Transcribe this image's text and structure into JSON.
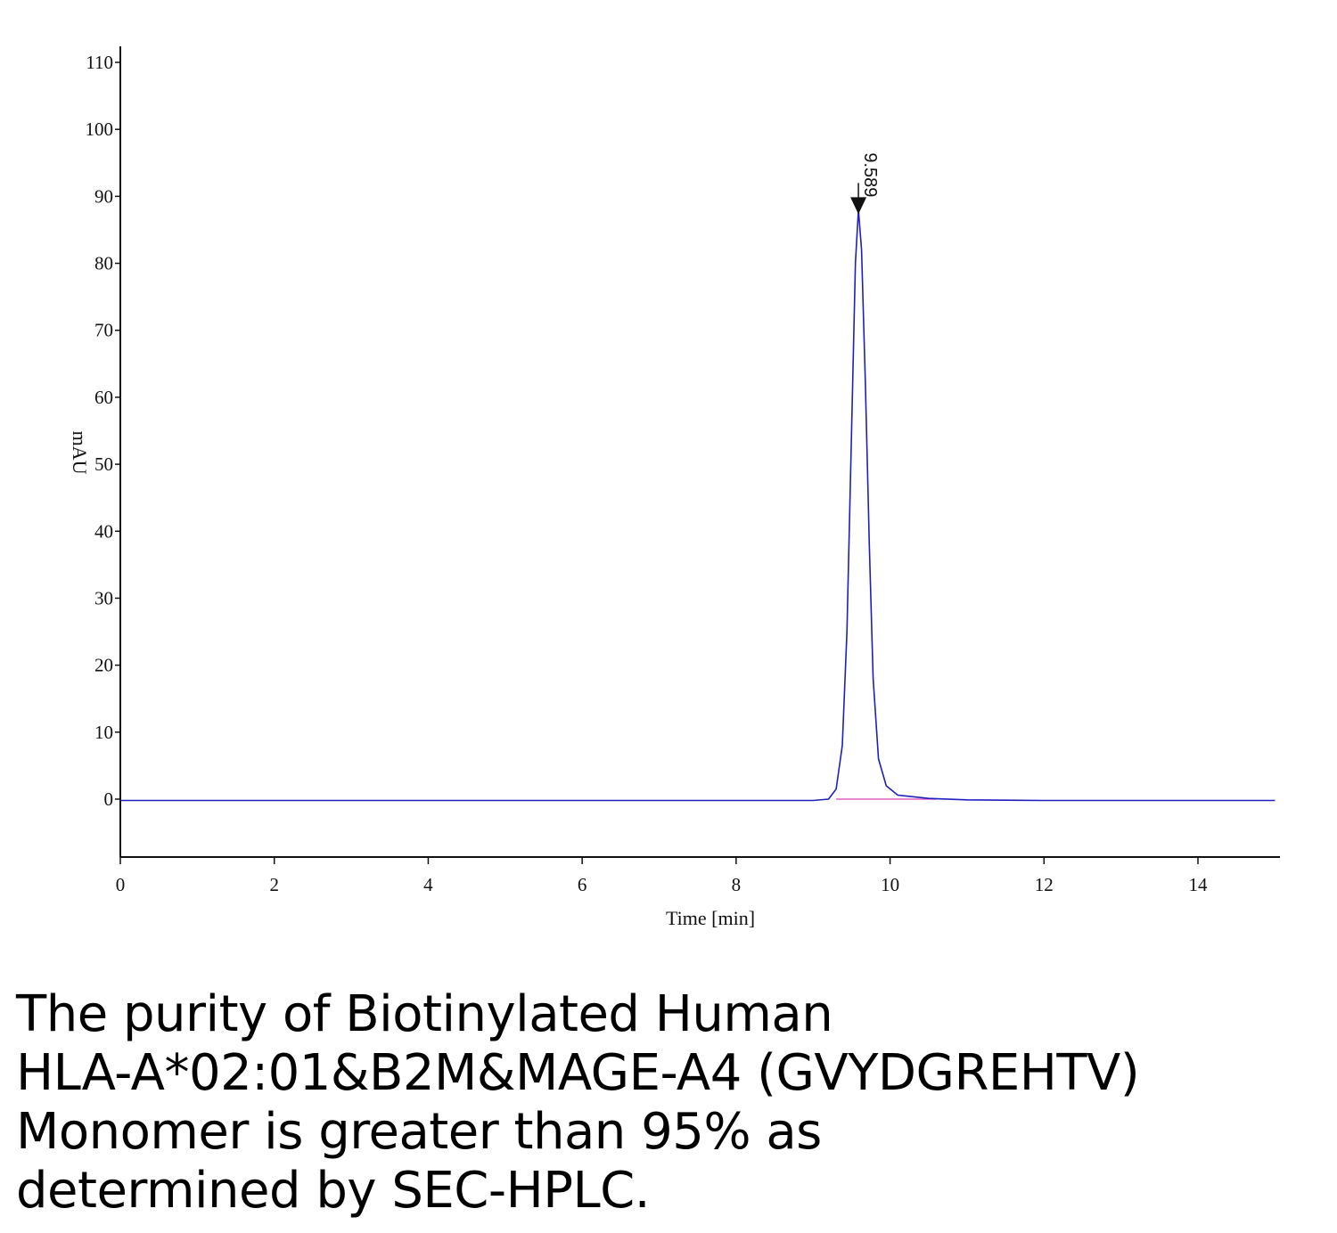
{
  "chart_data": {
    "type": "line",
    "xlabel": "Time [min]",
    "ylabel": "mAU",
    "xlim": [
      0,
      15
    ],
    "ylim": [
      -9,
      112
    ],
    "x_ticks": [
      0,
      2,
      4,
      6,
      8,
      10,
      12,
      14
    ],
    "y_ticks": [
      0,
      10,
      20,
      30,
      40,
      50,
      60,
      70,
      80,
      90,
      100,
      110
    ],
    "grid": false,
    "legend": "none",
    "series": [
      {
        "color": "#1f1fbf",
        "points": [
          [
            0,
            -0.2
          ],
          [
            2,
            -0.2
          ],
          [
            4,
            -0.2
          ],
          [
            6,
            -0.2
          ],
          [
            8,
            -0.2
          ],
          [
            9.0,
            -0.2
          ],
          [
            9.2,
            0.0
          ],
          [
            9.3,
            1.5
          ],
          [
            9.38,
            8
          ],
          [
            9.44,
            25
          ],
          [
            9.5,
            55
          ],
          [
            9.55,
            80
          ],
          [
            9.589,
            88
          ],
          [
            9.63,
            82
          ],
          [
            9.68,
            62
          ],
          [
            9.73,
            38
          ],
          [
            9.78,
            18
          ],
          [
            9.85,
            6
          ],
          [
            9.95,
            2
          ],
          [
            10.1,
            0.6
          ],
          [
            10.5,
            0.1
          ],
          [
            11,
            -0.1
          ],
          [
            12,
            -0.2
          ],
          [
            13,
            -0.2
          ],
          [
            15,
            -0.2
          ]
        ]
      }
    ],
    "baseline": {
      "color": "#e060c0",
      "x_start": 9.3,
      "x_end": 10.6,
      "y": 0
    },
    "peak_marker": {
      "x": 9.589,
      "y": 88,
      "label": "9.589"
    }
  },
  "caption": {
    "lines": [
      "The purity of Biotinylated Human",
      "HLA-A*02:01&B2M&MAGE-A4 (GVYDGREHTV)",
      "Monomer is greater than 95% as",
      "determined by SEC-HPLC."
    ]
  }
}
